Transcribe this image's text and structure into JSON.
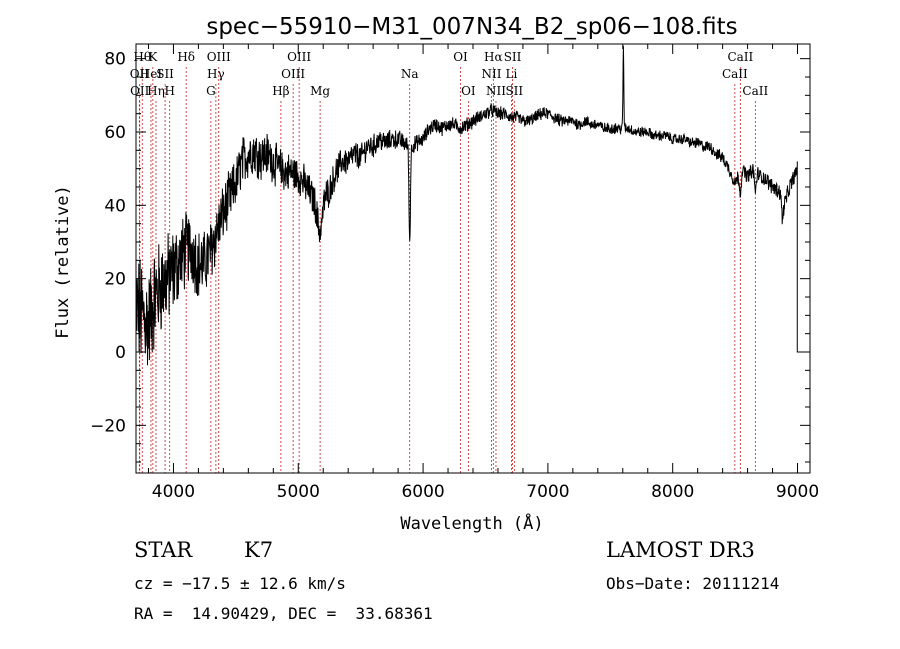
{
  "chart_data": {
    "type": "line",
    "title": "spec−55910−M31_007N34_B2_sp06−108.fits",
    "xlabel": "Wavelength (Å)",
    "ylabel": "Flux (relative)",
    "xlim": [
      3700,
      9100
    ],
    "ylim": [
      -33,
      84
    ],
    "xticks": [
      4000,
      5000,
      6000,
      7000,
      8000,
      9000
    ],
    "xtick_labels": [
      "4000",
      "5000",
      "6000",
      "7000",
      "8000",
      "9000"
    ],
    "yticks": [
      -20,
      0,
      20,
      40,
      60,
      80
    ],
    "ytick_labels": [
      "−20",
      "0",
      "20",
      "40",
      "60",
      "80"
    ],
    "spectrum_anchors": [
      [
        3700,
        12
      ],
      [
        3750,
        10
      ],
      [
        3800,
        8
      ],
      [
        3850,
        15
      ],
      [
        3900,
        18
      ],
      [
        3950,
        20
      ],
      [
        4000,
        22
      ],
      [
        4050,
        25
      ],
      [
        4100,
        28
      ],
      [
        4150,
        28
      ],
      [
        4200,
        24
      ],
      [
        4250,
        24
      ],
      [
        4300,
        28
      ],
      [
        4350,
        33
      ],
      [
        4400,
        38
      ],
      [
        4450,
        42
      ],
      [
        4500,
        46
      ],
      [
        4550,
        52
      ],
      [
        4600,
        54
      ],
      [
        4650,
        55
      ],
      [
        4700,
        53
      ],
      [
        4750,
        54
      ],
      [
        4800,
        52
      ],
      [
        4850,
        50
      ],
      [
        4900,
        49
      ],
      [
        4950,
        49
      ],
      [
        5000,
        48
      ],
      [
        5050,
        46
      ],
      [
        5100,
        43
      ],
      [
        5150,
        40
      ],
      [
        5200,
        42
      ],
      [
        5250,
        44
      ],
      [
        5300,
        49
      ],
      [
        5350,
        52
      ],
      [
        5400,
        52
      ],
      [
        5450,
        54
      ],
      [
        5500,
        53
      ],
      [
        5550,
        56
      ],
      [
        5600,
        56
      ],
      [
        5650,
        58
      ],
      [
        5700,
        57
      ],
      [
        5750,
        58
      ],
      [
        5800,
        58
      ],
      [
        5850,
        57
      ],
      [
        5900,
        56
      ],
      [
        5950,
        57
      ],
      [
        6000,
        58
      ],
      [
        6050,
        61
      ],
      [
        6100,
        62
      ],
      [
        6150,
        61
      ],
      [
        6200,
        62
      ],
      [
        6250,
        62
      ],
      [
        6300,
        61
      ],
      [
        6350,
        62
      ],
      [
        6400,
        63
      ],
      [
        6450,
        64
      ],
      [
        6500,
        65
      ],
      [
        6550,
        66
      ],
      [
        6600,
        65
      ],
      [
        6650,
        65
      ],
      [
        6700,
        64
      ],
      [
        6750,
        64
      ],
      [
        6800,
        63
      ],
      [
        6850,
        63
      ],
      [
        6900,
        64
      ],
      [
        6950,
        65
      ],
      [
        7000,
        65
      ],
      [
        7050,
        64
      ],
      [
        7100,
        63
      ],
      [
        7150,
        63
      ],
      [
        7200,
        63
      ],
      [
        7250,
        62
      ],
      [
        7300,
        63
      ],
      [
        7350,
        62
      ],
      [
        7400,
        62
      ],
      [
        7450,
        61
      ],
      [
        7500,
        61
      ],
      [
        7550,
        61
      ],
      [
        7600,
        61
      ],
      [
        7650,
        61
      ],
      [
        7700,
        60
      ],
      [
        7750,
        60
      ],
      [
        7800,
        60
      ],
      [
        7850,
        59
      ],
      [
        7900,
        59
      ],
      [
        7950,
        59
      ],
      [
        8000,
        58
      ],
      [
        8050,
        58
      ],
      [
        8100,
        58
      ],
      [
        8150,
        57
      ],
      [
        8200,
        57
      ],
      [
        8250,
        56
      ],
      [
        8300,
        56
      ],
      [
        8350,
        54
      ],
      [
        8400,
        53
      ],
      [
        8450,
        50
      ],
      [
        8500,
        46
      ],
      [
        8550,
        50
      ],
      [
        8600,
        48
      ],
      [
        8650,
        50
      ],
      [
        8700,
        48
      ],
      [
        8750,
        47
      ],
      [
        8800,
        45
      ],
      [
        8850,
        44
      ],
      [
        8900,
        41
      ],
      [
        8950,
        46
      ],
      [
        9000,
        50
      ]
    ],
    "spectrum_features": [
      {
        "x": 5893,
        "dy": -26,
        "width": 8
      },
      {
        "x": 7605,
        "dy": 22,
        "width": 5
      },
      {
        "x": 8542,
        "dy": -6,
        "width": 10
      },
      {
        "x": 8662,
        "dy": -6,
        "width": 10
      },
      {
        "x": 8880,
        "dy": -6,
        "width": 10
      },
      {
        "x": 5175,
        "dy": -8,
        "width": 25
      }
    ],
    "series_end": {
      "x": 8998,
      "y_top": 52,
      "y_bottom": 0
    },
    "noise_amplitude": [
      [
        3700,
        14
      ],
      [
        4100,
        9
      ],
      [
        4500,
        6
      ],
      [
        5300,
        3.5
      ],
      [
        6000,
        1.8
      ],
      [
        8000,
        1.2
      ],
      [
        9000,
        2
      ]
    ],
    "emission_lines": [
      {
        "wavelength": 3750,
        "label": "Hθ",
        "row": 0
      },
      {
        "wavelength": 3727,
        "label": "OII",
        "row": 1
      },
      {
        "wavelength": 3730,
        "label": "OII",
        "row": 2
      },
      {
        "wavelength": 3835,
        "label": "K",
        "row": 0
      },
      {
        "wavelength": 3820,
        "label": "HeI",
        "row": 1
      },
      {
        "wavelength": 3860,
        "label": "Hη",
        "row": 2
      },
      {
        "wavelength": 3933,
        "label": "SII",
        "row": 1
      },
      {
        "wavelength": 3970,
        "label": "H",
        "row": 2
      },
      {
        "wavelength": 4102,
        "label": "Hδ",
        "row": 0
      },
      {
        "wavelength": 4300,
        "label": "G",
        "row": 2
      },
      {
        "wavelength": 4340,
        "label": "Hγ",
        "row": 1
      },
      {
        "wavelength": 4363,
        "label": "OIII",
        "row": 0
      },
      {
        "wavelength": 4861,
        "label": "Hβ",
        "row": 2
      },
      {
        "wavelength": 4959,
        "label": "OIII",
        "row": 1
      },
      {
        "wavelength": 5007,
        "label": "OIII",
        "row": 0
      },
      {
        "wavelength": 5175,
        "label": "Mg",
        "row": 2
      },
      {
        "wavelength": 5893,
        "label": "Na",
        "row": 1
      },
      {
        "wavelength": 6300,
        "label": "OI",
        "row": 0
      },
      {
        "wavelength": 6363,
        "label": "OI",
        "row": 2
      },
      {
        "wavelength": 6548,
        "label": "NII",
        "row": 1
      },
      {
        "wavelength": 6563,
        "label": "Hα",
        "row": 0
      },
      {
        "wavelength": 6584,
        "label": "NII",
        "row": 2
      },
      {
        "wavelength": 6708,
        "label": "Li",
        "row": 1
      },
      {
        "wavelength": 6717,
        "label": "SII",
        "row": 0
      },
      {
        "wavelength": 6731,
        "label": "SII",
        "row": 2
      },
      {
        "wavelength": 8498,
        "label": "CaII",
        "row": 1
      },
      {
        "wavelength": 8542,
        "label": "CaII",
        "row": 0
      },
      {
        "wavelength": 8662,
        "label": "CaII",
        "row": 2
      }
    ]
  },
  "info": {
    "class_label": "STAR",
    "subclass": "K7",
    "survey": "LAMOST DR3",
    "cz": "cz = −17.5 ± 12.6 km/s",
    "obs_date": "Obs−Date: 20111214",
    "radec": "RA =  14.90429, DEC =  33.68361"
  },
  "colors": {
    "spectrum": "#000000",
    "line_markers": "#cc2222",
    "axes": "#000000"
  }
}
